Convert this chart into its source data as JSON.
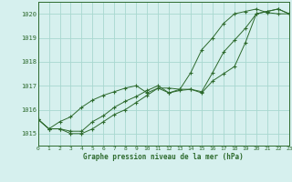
{
  "title": "Graphe pression niveau de la mer (hPa)",
  "bg_color": "#d6f0ee",
  "grid_color": "#a8d8d0",
  "line_color": "#2d6a2d",
  "xlim": [
    0,
    23
  ],
  "ylim": [
    1014.5,
    1020.5
  ],
  "yticks": [
    1015,
    1016,
    1017,
    1018,
    1019,
    1020
  ],
  "xticks": [
    0,
    1,
    2,
    3,
    4,
    5,
    6,
    7,
    8,
    9,
    10,
    11,
    12,
    13,
    14,
    15,
    16,
    17,
    18,
    19,
    20,
    21,
    22,
    23
  ],
  "series1": {
    "x": [
      0,
      1,
      2,
      3,
      4,
      5,
      6,
      7,
      8,
      9,
      10,
      11,
      12,
      13,
      14,
      15,
      16,
      17,
      18,
      19,
      20,
      21,
      22,
      23
    ],
    "y": [
      1015.6,
      1015.2,
      1015.2,
      1015.0,
      1015.0,
      1015.2,
      1015.5,
      1015.8,
      1016.0,
      1016.3,
      1016.6,
      1016.9,
      1016.7,
      1016.8,
      1016.85,
      1016.7,
      1017.2,
      1017.5,
      1017.8,
      1018.8,
      1020.0,
      1020.1,
      1020.2,
      1020.0
    ]
  },
  "series2": {
    "x": [
      0,
      1,
      2,
      3,
      4,
      5,
      6,
      7,
      8,
      9,
      10,
      11,
      12,
      13,
      14,
      15,
      16,
      17,
      18,
      19,
      20,
      21,
      22,
      23
    ],
    "y": [
      1015.6,
      1015.2,
      1015.2,
      1015.1,
      1015.1,
      1015.5,
      1015.75,
      1016.1,
      1016.35,
      1016.55,
      1016.8,
      1017.0,
      1016.7,
      1016.85,
      1016.85,
      1016.75,
      1017.55,
      1018.4,
      1018.9,
      1019.4,
      1020.0,
      1020.1,
      1020.2,
      1020.0
    ]
  },
  "series3": {
    "x": [
      0,
      1,
      2,
      3,
      4,
      5,
      6,
      7,
      8,
      9,
      10,
      11,
      12,
      13,
      14,
      15,
      16,
      17,
      18,
      19,
      20,
      21,
      22,
      23
    ],
    "y": [
      1015.6,
      1015.2,
      1015.5,
      1015.7,
      1016.1,
      1016.4,
      1016.6,
      1016.75,
      1016.9,
      1017.0,
      1016.7,
      1016.9,
      1016.9,
      1016.85,
      1017.55,
      1018.5,
      1019.0,
      1019.6,
      1020.0,
      1020.1,
      1020.2,
      1020.05,
      1020.0,
      1020.0
    ]
  }
}
